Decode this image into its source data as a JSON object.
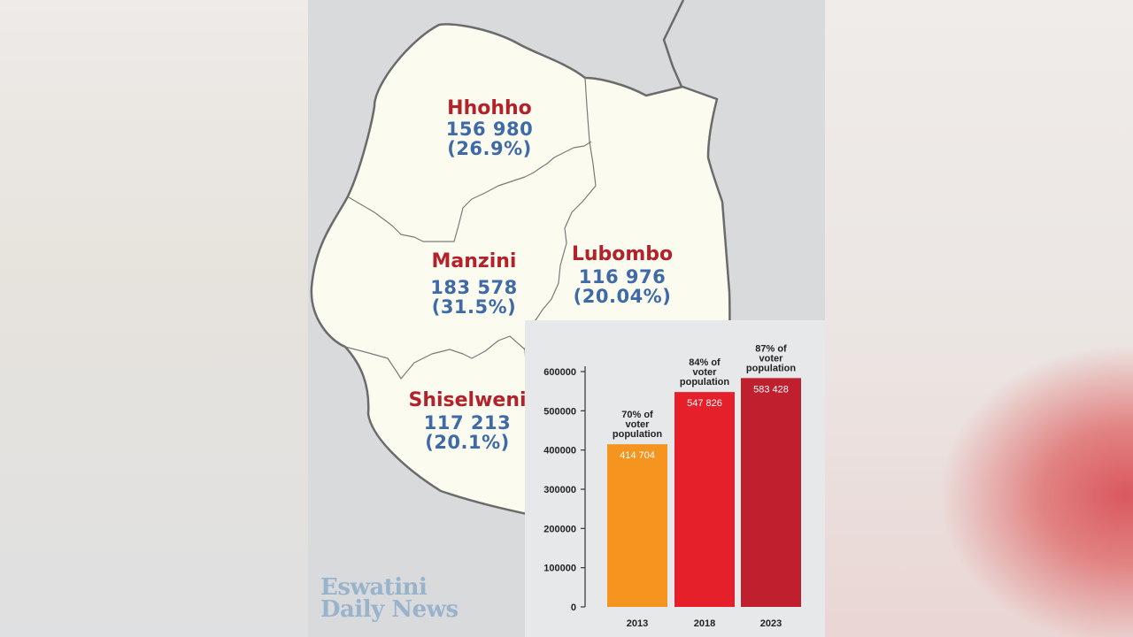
{
  "map": {
    "regions": [
      {
        "id": "hhohho",
        "name": "Hhohho",
        "count": "156 980",
        "pct": "(26.9%)"
      },
      {
        "id": "manzini",
        "name": "Manzini",
        "count": "183 578",
        "pct": "(31.5%)"
      },
      {
        "id": "lubombo",
        "name": "Lubombo",
        "count": "116 976",
        "pct": "(20.04%)"
      },
      {
        "id": "shiselweni",
        "name": "Shiselweni",
        "count": "117 213",
        "pct": "(20.1%)"
      }
    ],
    "colors": {
      "land": "#fcfbf0",
      "outside": "#d9dadb",
      "border": "#6b6b6b",
      "region_name": "#b3222a",
      "region_value": "#3e6aa8"
    }
  },
  "chart_data": {
    "type": "bar",
    "categories": [
      "2013",
      "2018",
      "2023"
    ],
    "values": [
      414704,
      547826,
      583428
    ],
    "data_labels": [
      "414 704",
      "547 826",
      "583 428"
    ],
    "annotations": [
      [
        "70% of",
        "voter",
        "population"
      ],
      [
        "84% of",
        "voter",
        "population"
      ],
      [
        "87% of",
        "voter",
        "population"
      ]
    ],
    "bar_colors": [
      "#f5951f",
      "#e5202a",
      "#c01f2e"
    ],
    "y_ticks": [
      "0",
      "100000",
      "200000",
      "300000",
      "400000",
      "500000",
      "600000"
    ],
    "ylim": [
      0,
      600000
    ],
    "grid": false
  },
  "branding": {
    "line1": "Eswatini",
    "line2": "Daily News"
  }
}
